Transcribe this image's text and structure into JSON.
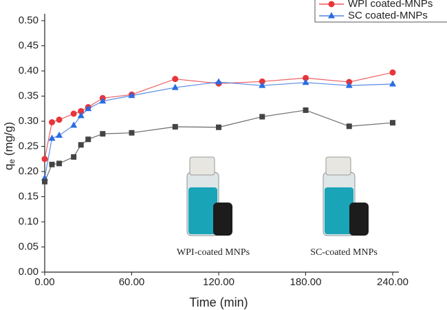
{
  "chart_data": {
    "type": "line",
    "x_label": "Time (min)",
    "y_label": {
      "symbol": "q",
      "subscript": "e",
      "unit": " (mg/g)"
    },
    "x": [
      0,
      5,
      10,
      20,
      25,
      30,
      40,
      60,
      90,
      120,
      150,
      180,
      210,
      240
    ],
    "series": [
      {
        "name": "WPI coated-MNPs",
        "color": "#e8353a",
        "marker": "circle",
        "values": [
          0.225,
          0.298,
          0.303,
          0.315,
          0.32,
          0.328,
          0.346,
          0.353,
          0.384,
          0.375,
          0.379,
          0.386,
          0.378,
          0.397
        ]
      },
      {
        "name": "SC coated-MNPs",
        "color": "#2a6de0",
        "marker": "triangle",
        "values": [
          0.187,
          0.266,
          0.272,
          0.292,
          0.311,
          0.325,
          0.34,
          0.351,
          0.367,
          0.378,
          0.371,
          0.377,
          0.371,
          0.374
        ]
      },
      {
        "color": "#444444",
        "marker": "square",
        "values": [
          0.18,
          0.214,
          0.216,
          0.229,
          0.253,
          0.264,
          0.275,
          0.277,
          0.289,
          0.288,
          0.309,
          0.322,
          0.29,
          0.297
        ]
      }
    ],
    "xlim": [
      0,
      240
    ],
    "xticks": [
      {
        "value": 0,
        "label": "0.00"
      },
      {
        "value": 60,
        "label": "60.00"
      },
      {
        "value": 120,
        "label": "120.00"
      },
      {
        "value": 180,
        "label": "180.00"
      },
      {
        "value": 240,
        "label": "240.00"
      }
    ],
    "ylim": [
      0,
      0.5
    ],
    "yticks": [
      {
        "value": 0,
        "label": "0.00"
      },
      {
        "value": 0.05,
        "label": "0.05"
      },
      {
        "value": 0.1,
        "label": "0.10"
      },
      {
        "value": 0.15,
        "label": "0.15"
      },
      {
        "value": 0.2,
        "label": "0.20"
      },
      {
        "value": 0.25,
        "label": "0.25"
      },
      {
        "value": 0.3,
        "label": "0.30"
      },
      {
        "value": 0.35,
        "label": "0.35"
      },
      {
        "value": 0.4,
        "label": "0.40"
      },
      {
        "value": 0.45,
        "label": "0.45"
      },
      {
        "value": 0.5,
        "label": "0.50"
      }
    ],
    "annotations": [
      "WPI-coated MNPs",
      "SC-coated MNPs"
    ]
  }
}
